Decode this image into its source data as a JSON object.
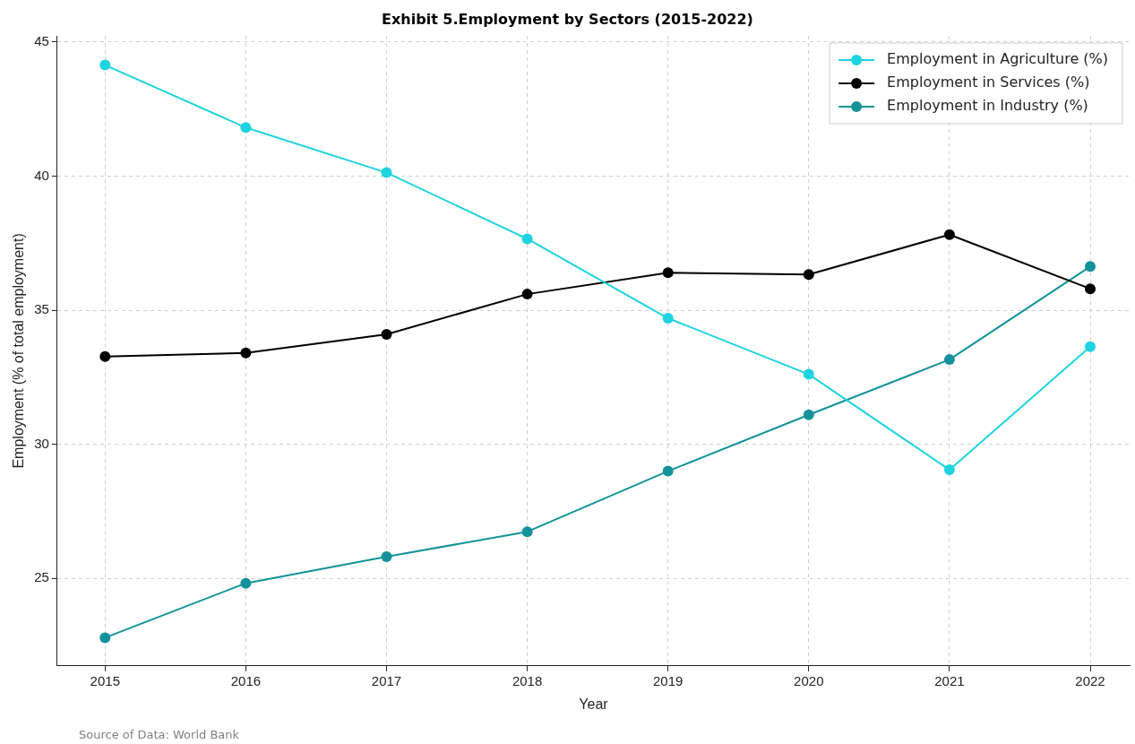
{
  "chart_data": {
    "type": "line",
    "title": "Exhibit 5.Employment by Sectors (2015-2022)",
    "xlabel": "Year",
    "ylabel": "Employment (% of total employment)",
    "x": [
      2015,
      2016,
      2017,
      2018,
      2019,
      2020,
      2021,
      2022
    ],
    "series": [
      {
        "name": "Employment in Agriculture (%)",
        "color": "#1fd3e0",
        "values": [
          44.14,
          41.81,
          40.13,
          37.66,
          34.7,
          32.61,
          29.05,
          33.64
        ]
      },
      {
        "name": "Employment in Services (%)",
        "color": "#000000",
        "values": [
          33.27,
          33.41,
          34.1,
          35.6,
          36.4,
          36.33,
          37.82,
          35.8
        ]
      },
      {
        "name": "Employment in Industry (%)",
        "color": "#139399",
        "values": [
          22.79,
          24.82,
          25.81,
          26.74,
          29.0,
          31.1,
          33.16,
          36.63
        ]
      }
    ],
    "xlim": [
      2014.66,
      2022.28
    ],
    "xticks": [
      2015,
      2016,
      2017,
      2018,
      2019,
      2020,
      2021,
      2022
    ],
    "ylim": [
      21.74,
      45.23
    ],
    "yticks": [
      25,
      30,
      35,
      40,
      45
    ],
    "grid": true,
    "legend": "top right",
    "marker": "circle",
    "line_style": "solid",
    "annotations": [
      "Source of Data: World Bank"
    ]
  }
}
